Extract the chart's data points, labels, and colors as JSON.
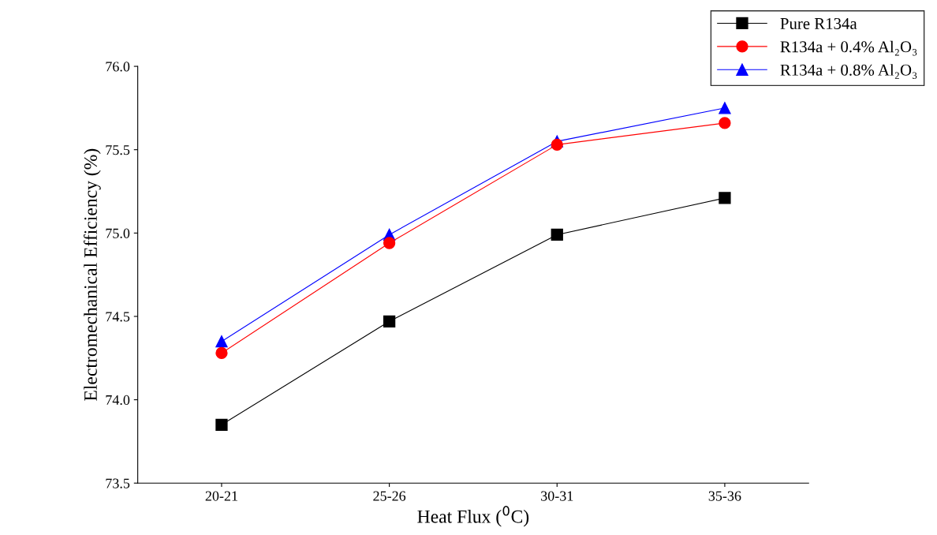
{
  "chart_data": {
    "type": "line",
    "xlabel": "Heat Flux ($^{0}$C)",
    "ylabel": "Electromechanical Efficiency (%)",
    "categories": [
      "20-21",
      "25-26",
      "30-31",
      "35-36"
    ],
    "series": [
      {
        "name": "Pure R134a",
        "color": "#000000",
        "marker": "square",
        "values": [
          73.85,
          74.47,
          74.99,
          75.21
        ]
      },
      {
        "name": "R134a + 0.4% Al₂O₃",
        "color": "#ff0000",
        "marker": "circle",
        "values": [
          74.28,
          74.94,
          75.53,
          75.66
        ]
      },
      {
        "name": "R134a + 0.8% Al₂O₃",
        "color": "#0000ff",
        "marker": "triangle",
        "values": [
          74.35,
          74.99,
          75.55,
          75.75
        ]
      }
    ],
    "ylim": [
      73.5,
      76.0
    ],
    "yticks": [
      73.5,
      {
        "value": 74,
        "label": "74.0"
      },
      74.5,
      {
        "value": 75,
        "label": "75.0"
      },
      75.5,
      {
        "value": 76,
        "label": "76.0"
      }
    ],
    "grid": false,
    "legend": "top right",
    "line_style": "solid"
  }
}
